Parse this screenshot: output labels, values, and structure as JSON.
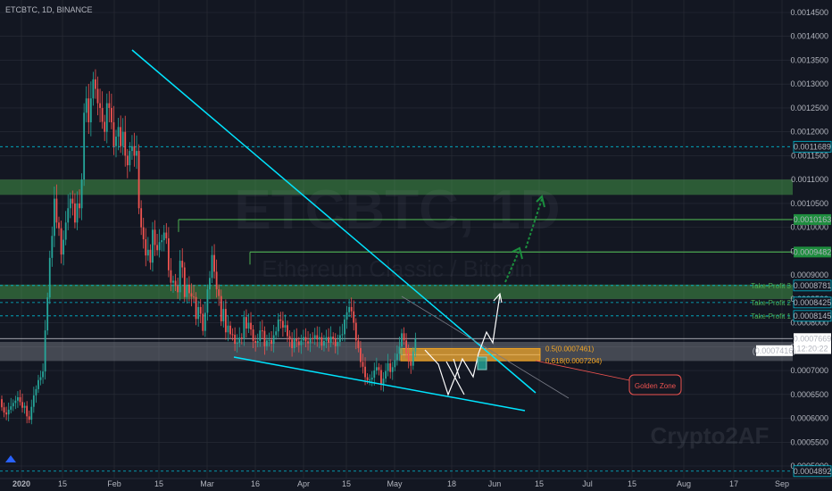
{
  "header": {
    "symbol_title": "ETCBTC, 1D, BINANCE"
  },
  "watermark": {
    "main": "ETCBTC, 1D",
    "sub": "Ethereum Classic / Bitcoin",
    "author": "Crypto2AF"
  },
  "colors": {
    "background": "#131722",
    "up": "#26a69a",
    "down": "#ef5350",
    "trendline": "#00e5ff",
    "zone_green": "#4caf50",
    "golden": "#f5a623",
    "grid": "#2a2e39",
    "text": "#b2b5be"
  },
  "chart_data": {
    "type": "candlestick",
    "title": "ETCBTC, 1D, BINANCE",
    "y_ticks": [
      "0.0014500",
      "0.0014000",
      "0.0013500",
      "0.0013000",
      "0.0012500",
      "0.0012000",
      "0.0011500",
      "0.0011000",
      "0.0010500",
      "0.0010000",
      "0.0009500",
      "0.0009000",
      "0.0008500",
      "0.0008000",
      "0.0007500",
      "0.0007000",
      "0.0006500",
      "0.0006000",
      "0.0005500",
      "0.0005000"
    ],
    "x_ticks": [
      "2020",
      "15",
      "Feb",
      "15",
      "Mar",
      "16",
      "Apr",
      "15",
      "May",
      "18",
      "Jun",
      "15",
      "Jul",
      "15",
      "Aug",
      "17",
      "Sep"
    ],
    "ylim": [
      0.00048,
      0.00146
    ],
    "price_labels": [
      {
        "text": "0.0011689",
        "value": 0.0011689,
        "style": "dashed"
      },
      {
        "text": "0.0010163",
        "value": 0.0010163,
        "style": "green"
      },
      {
        "text": "0.0009482",
        "value": 0.0009482,
        "style": "green"
      },
      {
        "text": "0.0008781",
        "value": 0.0008781,
        "style": "dashed"
      },
      {
        "text": "0.0008425",
        "value": 0.0008425,
        "style": "dashed"
      },
      {
        "text": "0.0008145",
        "value": 0.0008145,
        "style": "dashed"
      },
      {
        "text": "0.0007669",
        "value": 0.0007669,
        "style": "current"
      },
      {
        "text": "12:20:22",
        "value": 0.000746,
        "style": "timer"
      },
      {
        "text": "0.0004892",
        "value": 0.0004892,
        "style": "dashed"
      }
    ],
    "zone_label": "(0.0007416)",
    "take_profits": [
      "Take-Profit 3",
      "Take-Profit 2",
      "Take-Profit 1"
    ],
    "fib_labels": [
      "0.5(0.0007461)",
      "0.618(0.0007204)"
    ],
    "annotation": "Golden Zone",
    "zones": [
      {
        "name": "resistance-top",
        "from": 0.001068,
        "to": 0.0011
      },
      {
        "name": "resistance-mid",
        "from": 0.00085,
        "to": 0.00088
      },
      {
        "name": "support",
        "from": 0.00072,
        "to": 0.00076
      }
    ],
    "golden_zone": {
      "from": 0.0007204,
      "to": 0.0007461
    },
    "closes": [
      0.000623,
      0.000612,
      0.000608,
      0.000618,
      0.000625,
      0.000632,
      0.000637,
      0.000644,
      0.000634,
      0.000622,
      0.000626,
      0.000604,
      0.000597,
      0.000624,
      0.000648,
      0.000661,
      0.00068,
      0.000686,
      0.000698,
      0.000784,
      0.000853,
      0.000936,
      0.000982,
      0.00106,
      0.00101,
      0.000998,
      0.000943,
      0.000974,
      0.00101,
      0.00104,
      0.00106,
      0.00105,
      0.00101,
      0.00105,
      0.00104,
      0.0011,
      0.00124,
      0.00127,
      0.00122,
      0.00127,
      0.00131,
      0.00129,
      0.00126,
      0.00125,
      0.001221,
      0.0012,
      0.00126,
      0.00125,
      0.00122,
      0.00117,
      0.00119,
      0.00121,
      0.00117,
      0.0012,
      0.00115,
      0.00113,
      0.00116,
      0.00117,
      0.00115,
      0.00116,
      0.00104,
      0.001,
      0.000975,
      0.000941,
      0.000953,
      0.000926,
      0.000995,
      0.000963,
      0.000952,
      0.000969,
      0.000973,
      0.000989,
      0.000977,
      0.00091,
      0.000884,
      0.000888,
      0.000877,
      0.000864,
      0.00093,
      0.000916,
      0.000854,
      0.00088,
      0.000862,
      0.000855,
      0.000854,
      0.000808,
      0.000833,
      0.000819,
      0.000783,
      0.000821,
      0.00087,
      0.000894,
      0.000942,
      0.000907,
      0.00087,
      0.000856,
      0.000803,
      0.000829,
      0.00078,
      0.000794,
      0.000776,
      0.000775,
      0.000756,
      0.000758,
      0.000769,
      0.000767,
      0.000812,
      0.000788,
      0.0008,
      0.000786,
      0.000762,
      0.000758,
      0.000762,
      0.000784,
      0.000783,
      0.000751,
      0.000763,
      0.000764,
      0.000756,
      0.000774,
      0.000782,
      0.000807,
      0.000804,
      0.00079,
      0.000795,
      0.000772,
      0.000765,
      0.000747,
      0.000767,
      0.000761,
      0.000753,
      0.000763,
      0.00077,
      0.000761,
      0.000757,
      0.000768,
      0.000766,
      0.000774,
      0.000765,
      0.00077,
      0.000752,
      0.000762,
      0.00077,
      0.000758,
      0.000771,
      0.000766,
      0.000751,
      0.00076,
      0.000774,
      0.000776,
      0.000807,
      0.000822,
      0.000833,
      0.000824,
      0.0008,
      0.000763,
      0.000747,
      0.000718,
      0.000708,
      0.000686,
      0.00068,
      0.000681,
      0.000685,
      0.0007,
      0.000707,
      0.000701,
      0.000672,
      0.000683,
      0.000699,
      0.000715,
      0.000697,
      0.000707,
      0.000722,
      0.000735,
      0.00075,
      0.000778,
      0.000763,
      0.000737,
      0.000719,
      0.00071,
      0.00074,
      0.000767
    ]
  }
}
